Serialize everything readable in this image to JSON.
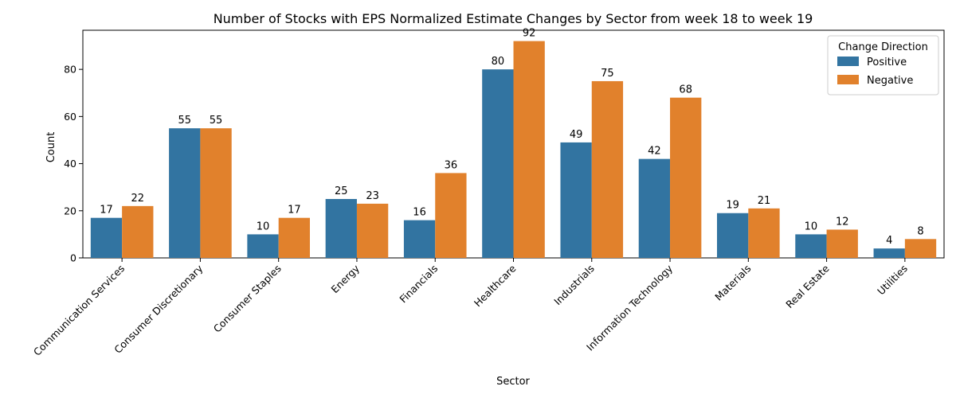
{
  "chart_data": {
    "type": "bar",
    "title": "Number of Stocks with EPS Normalized Estimate Changes by Sector from week 18 to week 19",
    "xlabel": "Sector",
    "ylabel": "Count",
    "ylim": [
      0,
      96.6
    ],
    "yticks": [
      0,
      20,
      40,
      60,
      80
    ],
    "grid": false,
    "legend": {
      "title": "Change Direction",
      "position": "top-right"
    },
    "categories": [
      "Communication Services",
      "Consumer Discretionary",
      "Consumer Staples",
      "Energy",
      "Financials",
      "Healthcare",
      "Industrials",
      "Information Technology",
      "Materials",
      "Real Estate",
      "Utilities"
    ],
    "series": [
      {
        "name": "Positive",
        "color": "#3274a1",
        "values": [
          17,
          55,
          10,
          25,
          16,
          80,
          49,
          42,
          19,
          10,
          4
        ]
      },
      {
        "name": "Negative",
        "color": "#e1812c",
        "values": [
          22,
          55,
          17,
          23,
          36,
          92,
          75,
          68,
          21,
          12,
          8
        ]
      }
    ]
  }
}
